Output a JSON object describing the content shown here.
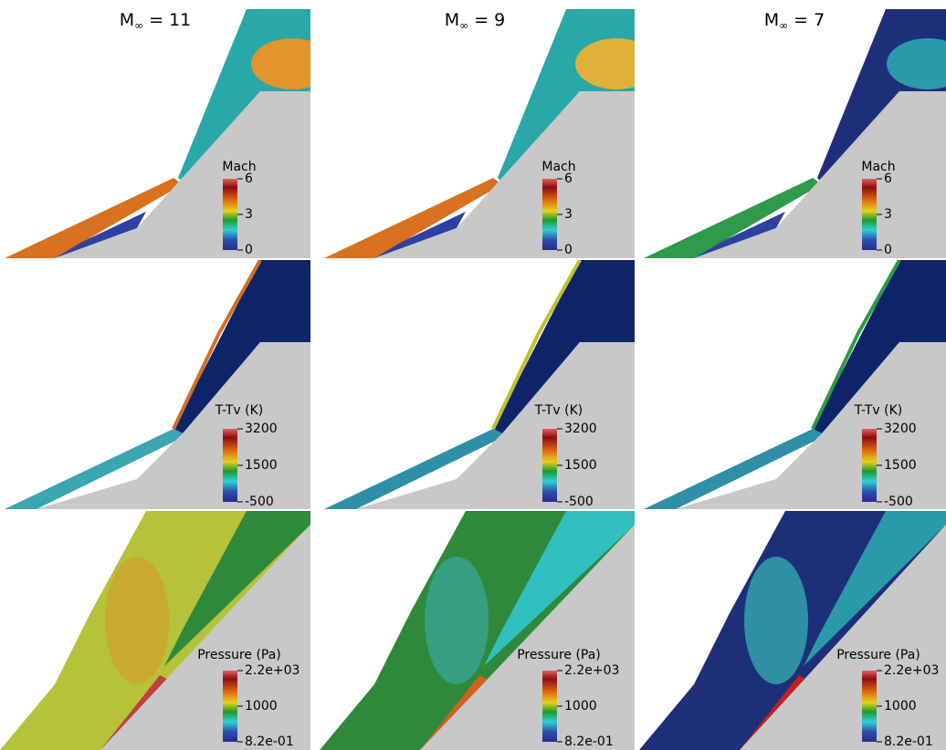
{
  "column_titles": [
    {
      "symbol": "M",
      "subscript": "∞",
      "value": "= 11"
    },
    {
      "symbol": "M",
      "subscript": "∞",
      "value": "= 9"
    },
    {
      "symbol": "M",
      "subscript": "∞",
      "value": "= 7"
    }
  ],
  "rows": [
    {
      "colorbar": {
        "title": "Mach",
        "ticks": [
          "6",
          "3",
          "0"
        ]
      }
    },
    {
      "colorbar": {
        "title": "T-Tv (K)",
        "ticks": [
          "3200",
          "1500",
          "-500"
        ]
      }
    },
    {
      "colorbar": {
        "title": "Pressure (Pa)",
        "ticks": [
          "2.2e+03",
          "1000",
          "8.2e-01"
        ]
      }
    }
  ]
}
